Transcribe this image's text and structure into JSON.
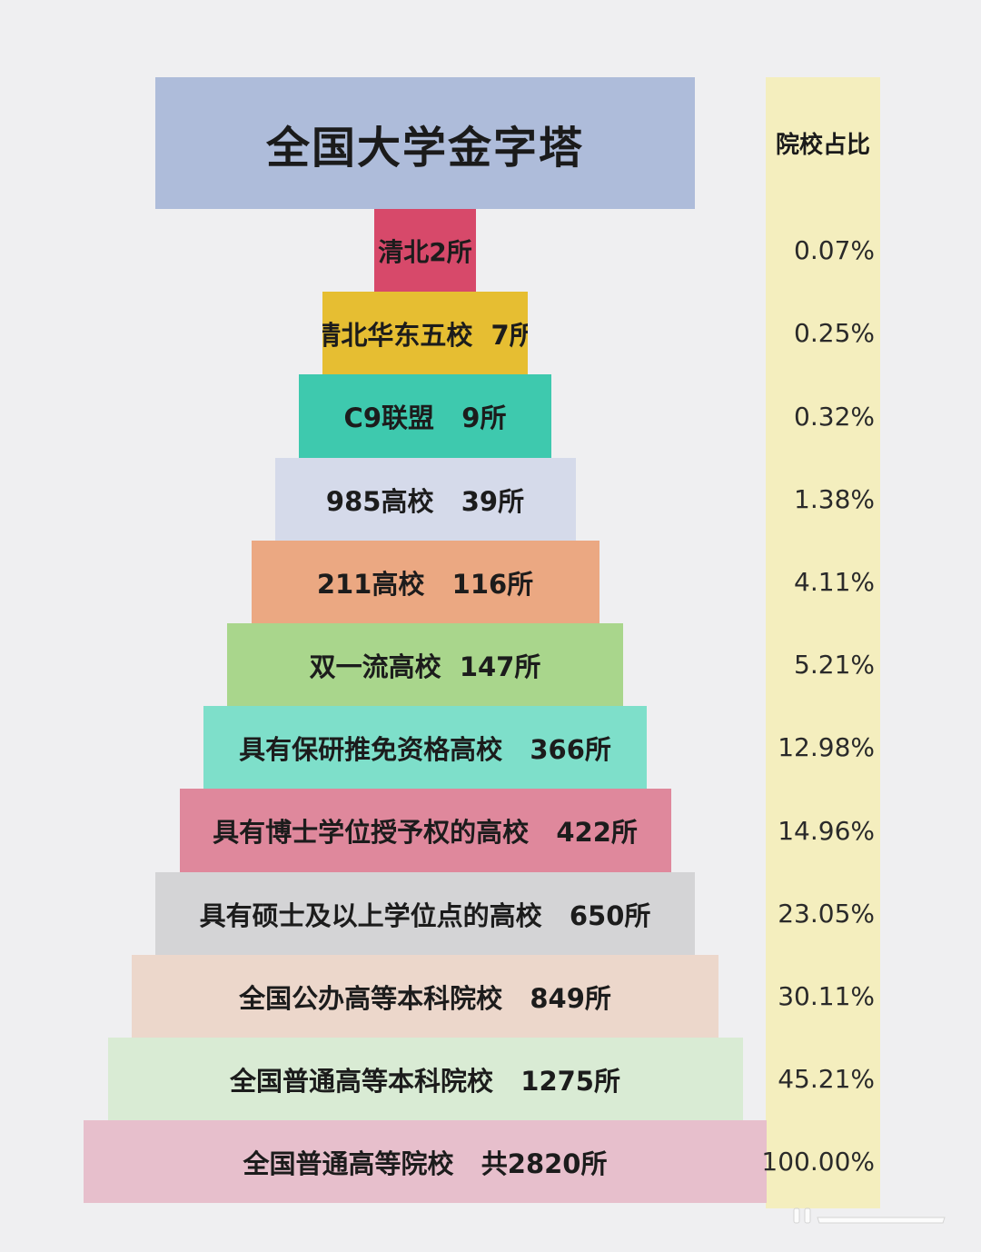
{
  "title": "全国大学金字塔",
  "ratio_header": "院校占比",
  "colors": {
    "background": "#efeff1",
    "title_box": "#aebcda",
    "ratio_column": "#f4eebe"
  },
  "tiers": [
    {
      "label": "清北2所",
      "ratio": "0.07%",
      "color": "#d7496a"
    },
    {
      "label": "清北华东五校  7所",
      "ratio": "0.25%",
      "color": "#e6be32"
    },
    {
      "label": "C9联盟   9所",
      "ratio": "0.32%",
      "color": "#3ec9ae"
    },
    {
      "label": "985高校   39所",
      "ratio": "1.38%",
      "color": "#d5daea"
    },
    {
      "label": "211高校   116所",
      "ratio": "4.11%",
      "color": "#eba882"
    },
    {
      "label": "双一流高校  147所",
      "ratio": "5.21%",
      "color": "#a9d68c"
    },
    {
      "label": "具有保研推免资格高校   366所",
      "ratio": "12.98%",
      "color": "#7edfca"
    },
    {
      "label": "具有博士学位授予权的高校   422所",
      "ratio": "14.96%",
      "color": "#df889c"
    },
    {
      "label": "具有硕士及以上学位点的高校   650所",
      "ratio": "23.05%",
      "color": "#d4d4d6"
    },
    {
      "label": "全国公办高等本科院校   849所",
      "ratio": "30.11%",
      "color": "#ecd7cb"
    },
    {
      "label": "全国普通高等本科院校   1275所",
      "ratio": "45.21%",
      "color": "#d9ebd4"
    },
    {
      "label": "全国普通高等院校   共2820所",
      "ratio": "100.00%",
      "color": "#e7bfcc"
    }
  ]
}
